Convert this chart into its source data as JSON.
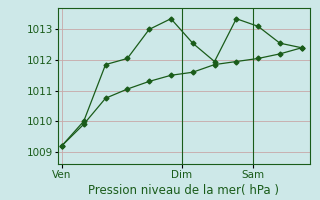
{
  "bg_color": "#cde8e8",
  "grid_color": "#c8a8a8",
  "line_color": "#1a5c1a",
  "line1_x": [
    0,
    1,
    2,
    3,
    4,
    5,
    6,
    7,
    8,
    9,
    10,
    11
  ],
  "line1_y": [
    1009.2,
    1010.0,
    1011.85,
    1012.05,
    1013.0,
    1013.35,
    1012.55,
    1011.95,
    1013.35,
    1013.1,
    1012.55,
    1012.4
  ],
  "line2_x": [
    0,
    1,
    2,
    3,
    4,
    5,
    6,
    7,
    8,
    9,
    10,
    11
  ],
  "line2_y": [
    1009.2,
    1009.9,
    1010.75,
    1011.05,
    1011.3,
    1011.5,
    1011.6,
    1011.85,
    1011.95,
    1012.05,
    1012.2,
    1012.4
  ],
  "xtick_positions": [
    0,
    5.5,
    8.75
  ],
  "xtick_labels": [
    "Ven",
    "Dim",
    "Sam"
  ],
  "vline_x": [
    5.5,
    8.75
  ],
  "yticks": [
    1009,
    1010,
    1011,
    1012,
    1013
  ],
  "ylim": [
    1008.6,
    1013.7
  ],
  "xlim": [
    -0.2,
    11.4
  ],
  "xlabel": "Pression niveau de la mer( hPa )",
  "xlabel_fontsize": 8.5,
  "tick_fontsize": 7.5,
  "figsize": [
    3.2,
    2.0
  ],
  "dpi": 100
}
